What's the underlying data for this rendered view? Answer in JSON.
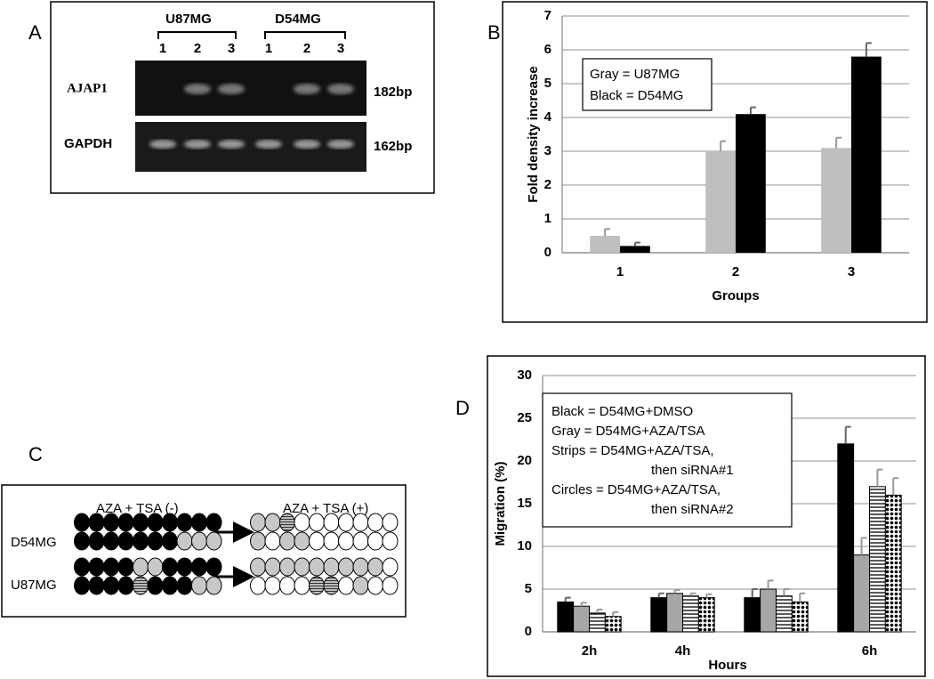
{
  "panel_a": {
    "label": "A",
    "groups": [
      "U87MG",
      "D54MG"
    ],
    "lanes": [
      "1",
      "2",
      "3",
      "1",
      "2",
      "3"
    ],
    "genes": [
      "AJAP1",
      "GAPDH"
    ],
    "sizes": [
      "182bp",
      "162bp"
    ]
  },
  "panel_c": {
    "label": "C",
    "conditions": [
      "AZA + TSA (-)",
      "AZA + TSA (+)"
    ],
    "cells": [
      "D54MG",
      "U87MG"
    ]
  },
  "chart_data": [
    {
      "type": "bar",
      "panel_label": "B",
      "ylabel": "Fold density increase",
      "xlabel": "Groups",
      "categories": [
        "1",
        "2",
        "3"
      ],
      "series": [
        {
          "color": "#bfbfbf",
          "values": [
            0.5,
            3.0,
            3.1
          ],
          "errors": [
            0.2,
            0.3,
            0.3
          ]
        },
        {
          "color": "#000000",
          "values": [
            0.2,
            4.1,
            5.8
          ],
          "errors": [
            0.1,
            0.2,
            0.4
          ]
        }
      ],
      "legend_lines": [
        "Gray = U87MG",
        "Black = D54MG"
      ],
      "ylim": [
        0,
        7
      ],
      "yticks": [
        0,
        1,
        2,
        3,
        4,
        5,
        6,
        7
      ],
      "grid": true
    },
    {
      "type": "bar",
      "panel_label": "D",
      "ylabel": "Migration (%)",
      "xlabel": "Hours",
      "categories": [
        "2h",
        "4h",
        null,
        "6h"
      ],
      "series": [
        {
          "color": "#000000",
          "values": [
            3.5,
            4,
            4,
            22
          ],
          "errors": [
            0.5,
            0.5,
            1,
            2
          ]
        },
        {
          "color": "#a6a6a6",
          "values": [
            3,
            4.5,
            5,
            9
          ],
          "errors": [
            0.4,
            0.4,
            1,
            2
          ]
        },
        {
          "color": "#ffffff",
          "pattern": "strips",
          "values": [
            2.2,
            4.2,
            4.2,
            17
          ],
          "errors": [
            0.4,
            0.3,
            0.8,
            2
          ]
        },
        {
          "color": "#ffffff",
          "pattern": "circles",
          "values": [
            1.8,
            4,
            3.5,
            16
          ],
          "errors": [
            0.5,
            0.4,
            1,
            2
          ]
        }
      ],
      "legend_lines": [
        "Black = D54MG+DMSO",
        "Gray = D54MG+AZA/TSA",
        "Strips = D54MG+AZA/TSA,",
        "then siRNA#1",
        "Circles = D54MG+AZA/TSA,",
        "then siRNA#2"
      ],
      "ylim": [
        0,
        30
      ],
      "yticks": [
        0,
        5,
        10,
        15,
        20,
        25,
        30
      ],
      "grid": true
    }
  ]
}
